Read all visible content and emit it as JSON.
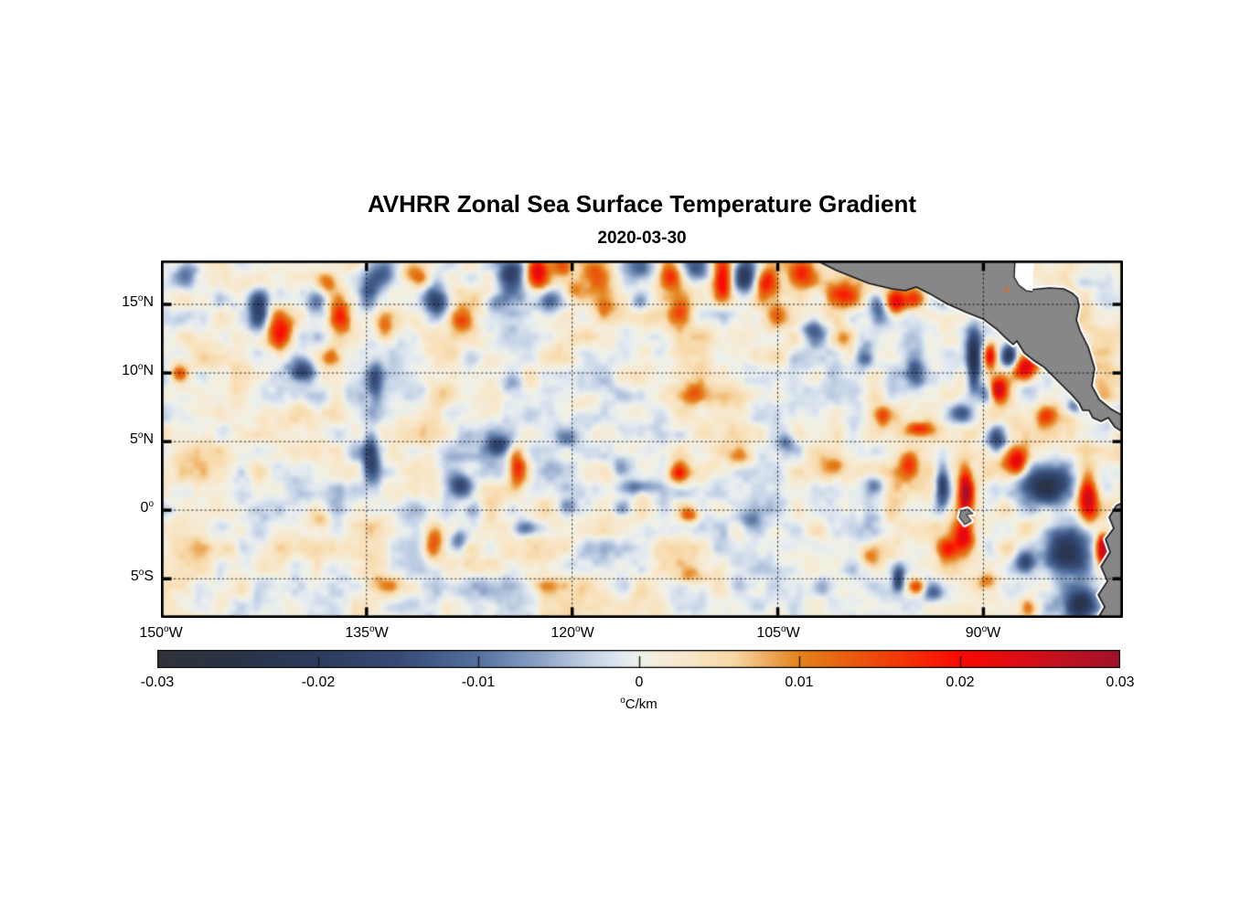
{
  "chart_data": {
    "type": "heatmap",
    "title": "AVHRR Zonal Sea Surface Temperature Gradient",
    "date": "2020-03-30",
    "x_axis": {
      "range_lon": [
        -150,
        -79.82
      ],
      "tick_values": [
        -150,
        -135,
        -120,
        -105,
        -90
      ],
      "tick_labels": [
        {
          "num": "150",
          "sup": "o",
          "suffix": "W"
        },
        {
          "num": "135",
          "sup": "o",
          "suffix": "W"
        },
        {
          "num": "120",
          "sup": "o",
          "suffix": "W"
        },
        {
          "num": "105",
          "sup": "o",
          "suffix": "W"
        },
        {
          "num": "90",
          "sup": "o",
          "suffix": "W"
        }
      ]
    },
    "y_axis": {
      "range_lat": [
        -7.85,
        18.2
      ],
      "tick_values": [
        15,
        10,
        5,
        0,
        -5
      ],
      "tick_labels": [
        {
          "num": "15",
          "sup": "o",
          "suffix": "N"
        },
        {
          "num": "10",
          "sup": "o",
          "suffix": "N"
        },
        {
          "num": "5",
          "sup": "o",
          "suffix": "N"
        },
        {
          "num": "0",
          "sup": "o",
          "suffix": ""
        },
        {
          "num": "5",
          "sup": "o",
          "suffix": "S"
        }
      ]
    },
    "grid": {
      "style": "dotted",
      "color": "#000000"
    },
    "colorbar": {
      "range": [
        -0.03,
        0.03
      ],
      "tick_values": [
        -0.03,
        -0.02,
        -0.01,
        0,
        0.01,
        0.02,
        0.03
      ],
      "tick_labels": [
        "-0.03",
        "-0.02",
        "-0.01",
        "0",
        "0.01",
        "0.02",
        "0.03"
      ],
      "inner_tick_values": [
        -0.02,
        -0.01,
        0,
        0.01,
        0.02
      ],
      "unit_sup": "o",
      "unit_text": "C/km"
    },
    "colormap_stops": [
      [
        -0.03,
        "#2f343a"
      ],
      [
        -0.025,
        "#2a3347"
      ],
      [
        -0.02,
        "#2c3c5e"
      ],
      [
        -0.015,
        "#374b76"
      ],
      [
        -0.01,
        "#54719f"
      ],
      [
        -0.006,
        "#8fa6c9"
      ],
      [
        -0.003,
        "#c6d4e7"
      ],
      [
        -0.001,
        "#e3eaf1"
      ],
      [
        0.0,
        "#edf1ea"
      ],
      [
        0.001,
        "#f4efe0"
      ],
      [
        0.003,
        "#f8e8cb"
      ],
      [
        0.006,
        "#f7d7a4"
      ],
      [
        0.01,
        "#e5821c"
      ],
      [
        0.013,
        "#e95f10"
      ],
      [
        0.017,
        "#f52f06"
      ],
      [
        0.02,
        "#fb0a02"
      ],
      [
        0.024,
        "#d90e17"
      ],
      [
        0.027,
        "#bb1322"
      ],
      [
        0.03,
        "#a01229"
      ]
    ],
    "field": {
      "bias": 0.0008,
      "noise_octaves": [
        {
          "scale_deg": 1.4,
          "amp": 0.0042,
          "seed": 11
        },
        {
          "scale_deg": 3.2,
          "amp": 0.003,
          "seed": 23
        },
        {
          "scale_deg": 0.55,
          "amp": 0.0015,
          "seed": 37
        }
      ],
      "features": [
        [
          -133.7,
          17.2,
          0.8,
          0.8,
          -0.012
        ],
        [
          -131.7,
          17.4,
          0.7,
          0.7,
          0.013
        ],
        [
          -124.4,
          17.2,
          0.7,
          0.9,
          -0.018
        ],
        [
          -122.5,
          17.4,
          0.55,
          0.9,
          0.022
        ],
        [
          -120.8,
          17.8,
          0.6,
          0.7,
          0.014
        ],
        [
          -118.5,
          17.1,
          0.7,
          0.8,
          0.013
        ],
        [
          -115.0,
          17.6,
          0.7,
          0.7,
          -0.011
        ],
        [
          -112.8,
          17.1,
          0.6,
          0.8,
          0.016
        ],
        [
          -110.9,
          17.7,
          0.7,
          0.7,
          -0.015
        ],
        [
          -109.0,
          16.8,
          0.5,
          1.1,
          0.024
        ],
        [
          -107.4,
          17.3,
          0.6,
          0.9,
          -0.02
        ],
        [
          -105.8,
          16.6,
          0.6,
          0.8,
          0.02
        ],
        [
          -103.2,
          17.2,
          0.7,
          0.7,
          0.012
        ],
        [
          -100.2,
          15.7,
          0.8,
          0.6,
          0.013
        ],
        [
          -97.6,
          14.5,
          0.5,
          0.7,
          -0.014
        ],
        [
          -96.5,
          15.1,
          0.5,
          0.7,
          0.02
        ],
        [
          -95.0,
          15.4,
          0.7,
          0.5,
          0.012
        ],
        [
          -148.0,
          17.5,
          0.7,
          0.7,
          -0.009
        ],
        [
          -142.9,
          14.5,
          0.5,
          1.0,
          -0.02
        ],
        [
          -141.3,
          13.1,
          0.7,
          1.1,
          0.018
        ],
        [
          -138.6,
          15.3,
          0.5,
          0.7,
          -0.012
        ],
        [
          -137.9,
          16.5,
          0.5,
          0.5,
          0.01
        ],
        [
          -136.9,
          14.0,
          0.5,
          0.8,
          0.016
        ],
        [
          -134.8,
          15.7,
          0.5,
          0.9,
          -0.013
        ],
        [
          -133.7,
          13.3,
          0.5,
          0.7,
          0.012
        ],
        [
          -131.1,
          16.7,
          0.5,
          0.5,
          0.01
        ],
        [
          -129.9,
          15.1,
          0.6,
          0.9,
          -0.015
        ],
        [
          -128.1,
          13.9,
          0.6,
          0.6,
          0.012
        ],
        [
          -125.7,
          15.1,
          0.5,
          0.5,
          -0.009
        ],
        [
          -121.7,
          15.2,
          0.5,
          0.6,
          -0.011
        ],
        [
          -119.9,
          16.0,
          0.5,
          0.6,
          0.009
        ],
        [
          -117.7,
          14.5,
          0.6,
          0.6,
          0.008
        ],
        [
          -115.1,
          15.2,
          0.5,
          0.5,
          -0.008
        ],
        [
          -112.1,
          14.5,
          0.6,
          0.7,
          0.01
        ],
        [
          -109.1,
          14.2,
          0.6,
          0.6,
          -0.009
        ],
        [
          -105.0,
          14.2,
          0.6,
          0.6,
          0.009
        ],
        [
          -102.4,
          13.2,
          0.6,
          0.6,
          -0.01
        ],
        [
          -100.4,
          12.5,
          0.6,
          0.6,
          0.012
        ],
        [
          -148.7,
          10.0,
          0.5,
          0.5,
          0.015
        ],
        [
          -139.7,
          10.1,
          0.7,
          0.6,
          -0.02
        ],
        [
          -137.7,
          11.1,
          0.5,
          0.5,
          0.01
        ],
        [
          -134.4,
          9.2,
          0.4,
          1.0,
          -0.013
        ],
        [
          -129.7,
          8.5,
          0.6,
          0.6,
          0.008
        ],
        [
          -124.4,
          9.2,
          0.6,
          0.6,
          -0.008
        ],
        [
          -119.0,
          7.9,
          0.7,
          0.6,
          0.008
        ],
        [
          -111.1,
          8.5,
          0.6,
          0.6,
          0.009
        ],
        [
          -98.7,
          11.1,
          0.5,
          0.7,
          -0.012
        ],
        [
          -95.0,
          10.0,
          0.5,
          0.9,
          -0.015
        ],
        [
          -90.7,
          10.9,
          0.35,
          1.5,
          -0.026
        ],
        [
          -89.5,
          11.3,
          0.3,
          0.7,
          0.018
        ],
        [
          -89.0,
          8.8,
          0.5,
          0.6,
          0.026
        ],
        [
          -86.9,
          10.4,
          0.7,
          0.7,
          0.028
        ],
        [
          -88.1,
          11.2,
          0.4,
          0.7,
          -0.02
        ],
        [
          -89.7,
          8.5,
          0.4,
          0.6,
          -0.018
        ],
        [
          -91.7,
          7.1,
          0.5,
          0.5,
          -0.012
        ],
        [
          -85.4,
          6.9,
          0.5,
          0.5,
          0.014
        ],
        [
          -83.4,
          7.5,
          0.4,
          0.4,
          -0.012
        ],
        [
          -134.7,
          3.9,
          0.4,
          1.2,
          -0.017
        ],
        [
          -125.4,
          4.7,
          0.6,
          0.5,
          -0.016
        ],
        [
          -124.0,
          3.1,
          0.45,
          1.0,
          0.018
        ],
        [
          -128.1,
          1.7,
          0.6,
          0.6,
          -0.016
        ],
        [
          -128.3,
          -2.2,
          0.45,
          0.5,
          -0.012
        ],
        [
          -120.4,
          5.2,
          0.5,
          0.5,
          -0.009
        ],
        [
          -116.4,
          3.2,
          0.6,
          0.5,
          -0.009
        ],
        [
          -112.2,
          2.7,
          0.6,
          0.6,
          0.02
        ],
        [
          -115.1,
          1.7,
          0.9,
          0.4,
          -0.012
        ],
        [
          -107.7,
          3.9,
          0.6,
          0.5,
          0.009
        ],
        [
          -104.4,
          4.9,
          0.5,
          0.5,
          -0.009
        ],
        [
          -101.0,
          3.2,
          0.6,
          0.6,
          0.01
        ],
        [
          -97.4,
          6.9,
          0.5,
          0.5,
          0.012
        ],
        [
          -94.7,
          5.9,
          0.8,
          0.4,
          0.015
        ],
        [
          -98.0,
          1.9,
          0.5,
          0.5,
          -0.01
        ],
        [
          -95.4,
          3.2,
          0.5,
          0.8,
          0.016
        ],
        [
          -93.0,
          1.7,
          0.35,
          1.2,
          -0.021
        ],
        [
          -91.3,
          1.3,
          0.35,
          1.4,
          0.026
        ],
        [
          -91.4,
          -1.8,
          0.5,
          0.8,
          0.02
        ],
        [
          -92.7,
          -2.8,
          0.6,
          0.5,
          0.015
        ],
        [
          -89.0,
          5.2,
          0.6,
          0.7,
          -0.02
        ],
        [
          -87.6,
          3.5,
          0.6,
          0.7,
          0.022
        ],
        [
          -85.4,
          1.9,
          1.4,
          1.1,
          -0.026
        ],
        [
          -82.4,
          0.7,
          0.5,
          1.2,
          0.026
        ],
        [
          -81.3,
          -2.8,
          0.35,
          0.8,
          0.03
        ],
        [
          -84.0,
          -3.1,
          1.2,
          1.2,
          -0.028
        ],
        [
          -83.0,
          -6.9,
          0.9,
          0.8,
          -0.026
        ],
        [
          -87.0,
          -3.8,
          0.5,
          0.5,
          -0.014
        ],
        [
          -86.7,
          -7.1,
          0.5,
          0.5,
          0.014
        ],
        [
          -89.7,
          -5.1,
          0.5,
          0.5,
          0.01
        ],
        [
          -93.7,
          -6.1,
          0.6,
          0.5,
          -0.009
        ],
        [
          -98.3,
          -3.5,
          0.6,
          0.6,
          0.009
        ],
        [
          -101.7,
          -5.5,
          0.6,
          0.5,
          -0.008
        ],
        [
          -96.2,
          -4.9,
          0.3,
          0.7,
          -0.018
        ],
        [
          -94.8,
          -5.6,
          0.4,
          0.4,
          0.014
        ],
        [
          -130.1,
          -2.5,
          0.5,
          0.9,
          0.016
        ],
        [
          -123.4,
          -1.3,
          0.8,
          0.4,
          -0.013
        ],
        [
          -127.1,
          -0.1,
          0.5,
          0.5,
          -0.01
        ],
        [
          -120.4,
          0.2,
          0.5,
          0.4,
          -0.008
        ],
        [
          -116.4,
          0.1,
          0.5,
          0.4,
          -0.009
        ],
        [
          -111.4,
          -0.3,
          0.5,
          0.4,
          0.012
        ],
        [
          -107.1,
          -0.8,
          0.6,
          0.5,
          -0.008
        ],
        [
          -138.4,
          -0.8,
          0.6,
          0.5,
          0.008
        ],
        [
          -145.1,
          -2.8,
          0.6,
          0.6,
          0.007
        ],
        [
          -133.7,
          -5.5,
          0.7,
          0.5,
          0.008
        ],
        [
          -121.7,
          -5.5,
          0.7,
          0.5,
          0.007
        ],
        [
          -111.1,
          -4.8,
          0.7,
          0.5,
          0.008
        ]
      ]
    },
    "land": {
      "fill": "#878787",
      "outline": "#151515",
      "fringe": "#ffffff",
      "central_america": [
        [
          -102.17,
          18.2
        ],
        [
          -100.7,
          17.47
        ],
        [
          -99.37,
          16.93
        ],
        [
          -98.37,
          16.53
        ],
        [
          -96.7,
          16.13
        ],
        [
          -95.7,
          16.0
        ],
        [
          -94.9,
          16.27
        ],
        [
          -93.83,
          15.73
        ],
        [
          -92.7,
          15.07
        ],
        [
          -91.36,
          14.47
        ],
        [
          -90.03,
          13.94
        ],
        [
          -89.03,
          13.2
        ],
        [
          -88.36,
          12.54
        ],
        [
          -87.82,
          12.07
        ],
        [
          -87.56,
          12.34
        ],
        [
          -87.02,
          11.47
        ],
        [
          -86.36,
          10.94
        ],
        [
          -85.56,
          10.41
        ],
        [
          -84.89,
          9.74
        ],
        [
          -84.22,
          9.07
        ],
        [
          -83.55,
          8.41
        ],
        [
          -83.02,
          7.81
        ],
        [
          -82.75,
          7.27
        ],
        [
          -82.29,
          7.27
        ],
        [
          -82.02,
          6.74
        ],
        [
          -81.42,
          6.47
        ],
        [
          -80.89,
          6.74
        ],
        [
          -80.42,
          6.07
        ],
        [
          -79.7,
          5.61
        ],
        [
          -79.7,
          6.81
        ],
        [
          -80.75,
          7.41
        ],
        [
          -81.55,
          8.07
        ],
        [
          -82.09,
          9.07
        ],
        [
          -81.89,
          10.34
        ],
        [
          -82.35,
          11.87
        ],
        [
          -82.95,
          13.07
        ],
        [
          -83.22,
          13.87
        ],
        [
          -83.02,
          14.87
        ],
        [
          -83.15,
          15.47
        ],
        [
          -83.49,
          15.8
        ],
        [
          -84.15,
          16.13
        ],
        [
          -85.22,
          16.2
        ],
        [
          -86.56,
          16.07
        ],
        [
          -87.09,
          16.53
        ],
        [
          -87.49,
          17.47
        ],
        [
          -87.62,
          18.3
        ]
      ],
      "pacific_fringe_from": 7,
      "pacific_fringe_to": 28,
      "caribbean_fringe_from": 29,
      "caribbean_fringe_to": 42,
      "honduras_bay_white": [
        [
          -87.69,
          18.25
        ],
        [
          -87.76,
          17.0
        ],
        [
          -87.42,
          16.4
        ],
        [
          -86.89,
          16.0
        ],
        [
          -86.42,
          15.93
        ],
        [
          -86.29,
          18.25
        ]
      ],
      "south_america": [
        [
          -79.7,
          0.61
        ],
        [
          -80.29,
          0.35
        ],
        [
          -80.82,
          -0.52
        ],
        [
          -80.49,
          -1.32
        ],
        [
          -81.09,
          -2.12
        ],
        [
          -80.75,
          -3.05
        ],
        [
          -81.42,
          -4.12
        ],
        [
          -80.95,
          -5.18
        ],
        [
          -81.62,
          -6.18
        ],
        [
          -81.15,
          -7.05
        ],
        [
          -81.69,
          -7.95
        ],
        [
          -79.7,
          -7.95
        ]
      ],
      "galapagos": [
        [
          -91.63,
          -0.05
        ],
        [
          -91.16,
          0.08
        ],
        [
          -90.76,
          -0.25
        ],
        [
          -91.23,
          -0.32
        ],
        [
          -90.9,
          -0.78
        ],
        [
          -91.36,
          -1.05
        ],
        [
          -91.76,
          -0.52
        ]
      ],
      "small_island_dot": {
        "lon": -88.29,
        "lat": 16.07,
        "radius_px": 2.5,
        "color": "#cc6f2d"
      }
    }
  }
}
